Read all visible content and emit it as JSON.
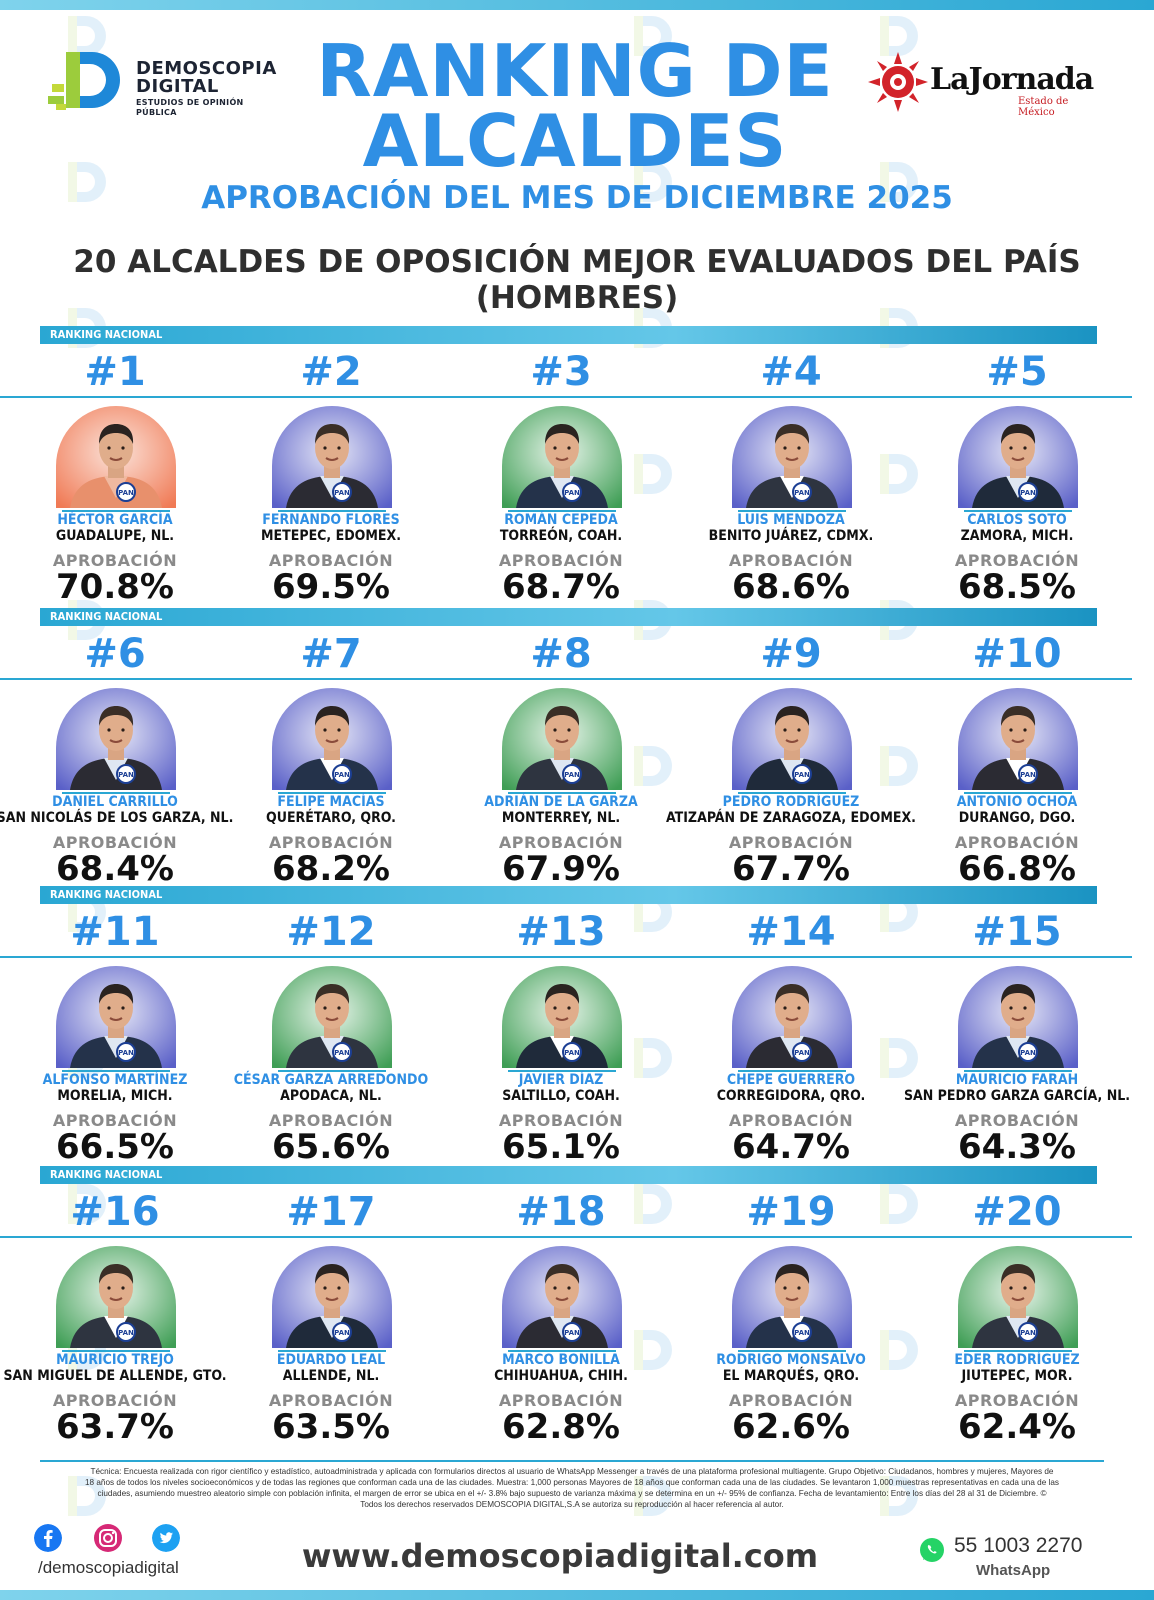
{
  "header": {
    "brand_line1": "DEMOSCOPIA",
    "brand_line2": "DIGITAL",
    "brand_sub": "ESTUDIOS DE OPINIÓN PÚBLICA",
    "title_line1": "RANKING DE",
    "title_line2": "ALCALDES",
    "subtitle": "APROBACIÓN DEL MES DE DICIEMBRE 2025",
    "heading_line1": "20 ALCALDES DE OPOSICIÓN MEJOR EVALUADOS DEL PAÍS",
    "heading_line2": "(HOMBRES)",
    "partner_name": "LaJornada",
    "partner_tag": "Estado de México"
  },
  "band_label": "RANKING NACIONAL",
  "approval_label": "APROBACIÓN",
  "colors": {
    "accent": "#2f8fe4",
    "band": "#2aa7d3",
    "pan_bg": "#3b3f9a",
    "green_bg": "#3f9e55",
    "orange_bg": "#f07a55"
  },
  "mayors": [
    {
      "rank": "#1",
      "name": "HÉCTOR GARCÍA",
      "city": "GUADALUPE, NL.",
      "approval": "70.8%",
      "bg": "orange"
    },
    {
      "rank": "#2",
      "name": "FERNANDO FLORES",
      "city": "METEPEC, EDOMEX.",
      "approval": "69.5%",
      "bg": "pan"
    },
    {
      "rank": "#3",
      "name": "ROMÁN CEPEDA",
      "city": "TORREÓN, COAH.",
      "approval": "68.7%",
      "bg": "green"
    },
    {
      "rank": "#4",
      "name": "LUIS MENDOZA",
      "city": "BENITO JUÁREZ, CDMX.",
      "approval": "68.6%",
      "bg": "pan"
    },
    {
      "rank": "#5",
      "name": "CARLOS SOTO",
      "city": "ZAMORA, MICH.",
      "approval": "68.5%",
      "bg": "pan"
    },
    {
      "rank": "#6",
      "name": "DANIEL CARRILLO",
      "city": "SAN NICOLÁS DE LOS GARZA, NL.",
      "approval": "68.4%",
      "bg": "pan"
    },
    {
      "rank": "#7",
      "name": "FELIPE MACÍAS",
      "city": "QUERÉTARO, QRO.",
      "approval": "68.2%",
      "bg": "pan"
    },
    {
      "rank": "#8",
      "name": "ADRIÁN DE LA GARZA",
      "city": "MONTERREY, NL.",
      "approval": "67.9%",
      "bg": "green"
    },
    {
      "rank": "#9",
      "name": "PEDRO RODRÍGUEZ",
      "city": "ATIZAPÁN DE ZARAGOZA, EDOMEX.",
      "approval": "67.7%",
      "bg": "pan"
    },
    {
      "rank": "#10",
      "name": "ANTONIO OCHOA",
      "city": "DURANGO, DGO.",
      "approval": "66.8%",
      "bg": "pan"
    },
    {
      "rank": "#11",
      "name": "ALFONSO MARTÍNEZ",
      "city": "MORELIA, MICH.",
      "approval": "66.5%",
      "bg": "pan"
    },
    {
      "rank": "#12",
      "name": "CÉSAR GARZA ARREDONDO",
      "city": "APODACA, NL.",
      "approval": "65.6%",
      "bg": "green"
    },
    {
      "rank": "#13",
      "name": "JAVIER DÍAZ",
      "city": "SALTILLO, COAH.",
      "approval": "65.1%",
      "bg": "green"
    },
    {
      "rank": "#14",
      "name": "CHEPE GUERRERO",
      "city": "CORREGIDORA, QRO.",
      "approval": "64.7%",
      "bg": "pan"
    },
    {
      "rank": "#15",
      "name": "MAURICIO FARAH",
      "city": "SAN PEDRO GARZA GARCÍA, NL.",
      "approval": "64.3%",
      "bg": "pan"
    },
    {
      "rank": "#16",
      "name": "MAURICIO TREJO",
      "city": "SAN MIGUEL DE ALLENDE, GTO.",
      "approval": "63.7%",
      "bg": "green"
    },
    {
      "rank": "#17",
      "name": "EDUARDO LEAL",
      "city": "ALLENDE, NL.",
      "approval": "63.5%",
      "bg": "pan"
    },
    {
      "rank": "#18",
      "name": "MARCO BONILLA",
      "city": "CHIHUAHUA, CHIH.",
      "approval": "62.8%",
      "bg": "pan"
    },
    {
      "rank": "#19",
      "name": "RODRIGO MONSALVO",
      "city": "EL MARQUÉS, QRO.",
      "approval": "62.6%",
      "bg": "pan"
    },
    {
      "rank": "#20",
      "name": "EDER RODRÍGUEZ",
      "city": "JIUTEPEC, MOR.",
      "approval": "62.4%",
      "bg": "green"
    }
  ],
  "footer": {
    "tecnica_line1": "Técnica: Encuesta realizada con rigor científico y estadístico, autoadministrada y aplicada con formularios directos al usuario de WhatsApp Messenger a través de una plataforma profesional multiagente. Grupo Objetivo: Ciudadanos, hombres y mujeres, Mayores de",
    "tecnica_line2": "18 años de todos los niveles socioeconómicos y de todas las regiones que conforman cada una de las ciudades. Muestra: 1,000 personas Mayores de 18 años que conforman cada una de las ciudades. Se levantaron 1,000 muestras representativas en cada una de las",
    "tecnica_line3": "ciudades, asumiendo muestreo aleatorio simple con población infinita, el margen de error se ubica en el +/- 3.8% bajo supuesto de varianza máxima y se determina en un +/- 95% de confianza. Fecha de levantamiento: Entre los días del 28 al 31 de Diciembre. ©",
    "tecnica_line4": "Todos los derechos reservados DEMOSCOPIA DIGITAL,S.A se autoriza su reproducción al hacer referencia al autor.",
    "social_handle": "/demoscopiadigital",
    "website": "www.demoscopiadigital.com",
    "whatsapp_number": "55 1003 2270",
    "whatsapp_label": "WhatsApp"
  }
}
